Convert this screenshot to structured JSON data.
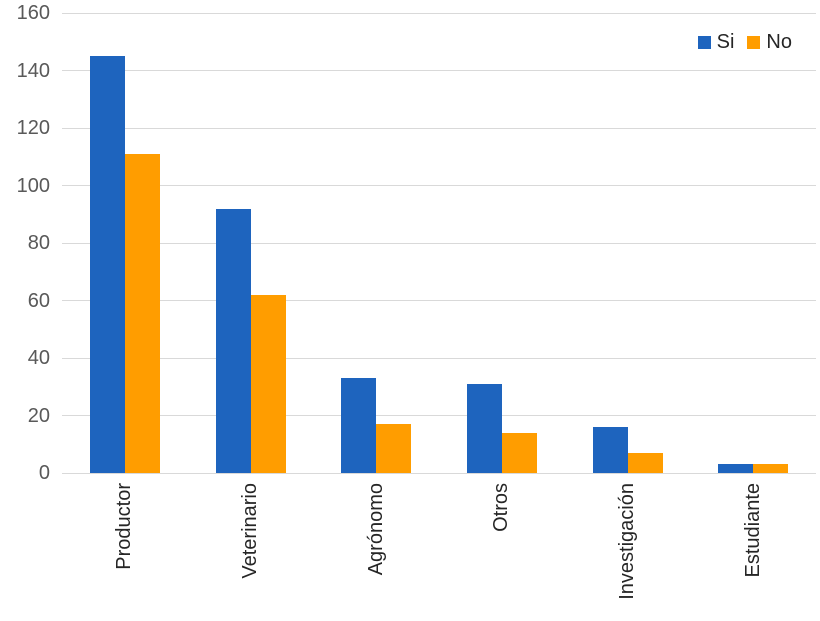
{
  "chart_data": {
    "type": "bar",
    "title": "",
    "xlabel": "",
    "ylabel": "",
    "categories": [
      "Productor",
      "Veterinario",
      "Agrónomo",
      "Otros",
      "Investigación",
      "Estudiante"
    ],
    "series": [
      {
        "name": "Si",
        "color": "#1E64BE",
        "values": [
          145,
          92,
          33,
          31,
          16,
          3
        ]
      },
      {
        "name": "No",
        "color": "#FF9D00",
        "values": [
          111,
          62,
          17,
          14,
          7,
          3
        ]
      }
    ],
    "ylim": [
      0,
      160
    ],
    "ytick_step": 20,
    "ytick_labels": [
      "0",
      "20",
      "40",
      "60",
      "80",
      "100",
      "120",
      "140",
      "160"
    ],
    "grid": "horizontal",
    "legend_position": "top-right",
    "x_labels_rotation_degrees": 90
  },
  "style": {
    "background": "#FFFFFF",
    "gridline_color": "#D9D9D9",
    "axis_line_color": "#D9D9D9",
    "ytick_text_color": "#595959",
    "xtick_text_color": "#262626",
    "legend_text_color": "#262626"
  }
}
